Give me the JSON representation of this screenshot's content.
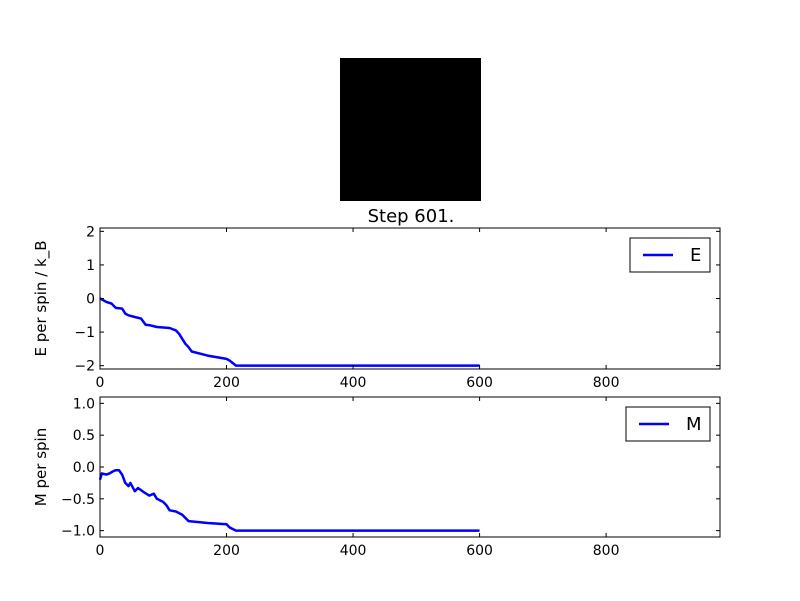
{
  "image_panel": {
    "color": "#000000"
  },
  "chart_data": [
    {
      "type": "line",
      "title": "Step 601.",
      "xlabel": "",
      "ylabel": "E per spin / k_B",
      "xlim": [
        0,
        980
      ],
      "ylim": [
        -2.1,
        2.1
      ],
      "xticks": [
        0,
        200,
        400,
        600,
        800
      ],
      "yticks": [
        -2,
        -1,
        0,
        1,
        2
      ],
      "ytick_labels": [
        "−2",
        "−1",
        "0",
        "1",
        "2"
      ],
      "grid": false,
      "legend_position": "top-right",
      "series": [
        {
          "name": "E",
          "color": "#0000ff",
          "x": [
            0,
            5,
            10,
            18,
            25,
            35,
            40,
            45,
            55,
            65,
            72,
            80,
            90,
            110,
            120,
            125,
            130,
            135,
            140,
            145,
            170,
            200,
            205,
            215,
            600
          ],
          "y": [
            0,
            -0.05,
            -0.1,
            -0.15,
            -0.28,
            -0.3,
            -0.45,
            -0.5,
            -0.55,
            -0.6,
            -0.78,
            -0.8,
            -0.85,
            -0.88,
            -0.95,
            -1.05,
            -1.2,
            -1.35,
            -1.45,
            -1.58,
            -1.7,
            -1.8,
            -1.85,
            -2.0,
            -2.0
          ]
        }
      ]
    },
    {
      "type": "line",
      "title": "",
      "xlabel": "",
      "ylabel": "M per spin",
      "xlim": [
        0,
        980
      ],
      "ylim": [
        -1.1,
        1.1
      ],
      "xticks": [
        0,
        200,
        400,
        600,
        800
      ],
      "yticks": [
        -1.0,
        -0.5,
        0.0,
        0.5,
        1.0
      ],
      "ytick_labels": [
        "−1.0",
        "−0.5",
        "0.0",
        "0.5",
        "1.0"
      ],
      "grid": false,
      "legend_position": "top-right",
      "series": [
        {
          "name": "M",
          "color": "#0000ff",
          "x": [
            0,
            3,
            10,
            15,
            20,
            25,
            30,
            35,
            40,
            45,
            48,
            55,
            60,
            70,
            78,
            85,
            90,
            100,
            105,
            110,
            120,
            130,
            140,
            170,
            200,
            205,
            215,
            600
          ],
          "y": [
            -0.2,
            -0.1,
            -0.12,
            -0.1,
            -0.07,
            -0.05,
            -0.05,
            -0.12,
            -0.25,
            -0.3,
            -0.25,
            -0.38,
            -0.33,
            -0.4,
            -0.45,
            -0.42,
            -0.5,
            -0.55,
            -0.6,
            -0.68,
            -0.7,
            -0.75,
            -0.85,
            -0.88,
            -0.9,
            -0.95,
            -1.0,
            -1.0
          ]
        }
      ]
    }
  ]
}
